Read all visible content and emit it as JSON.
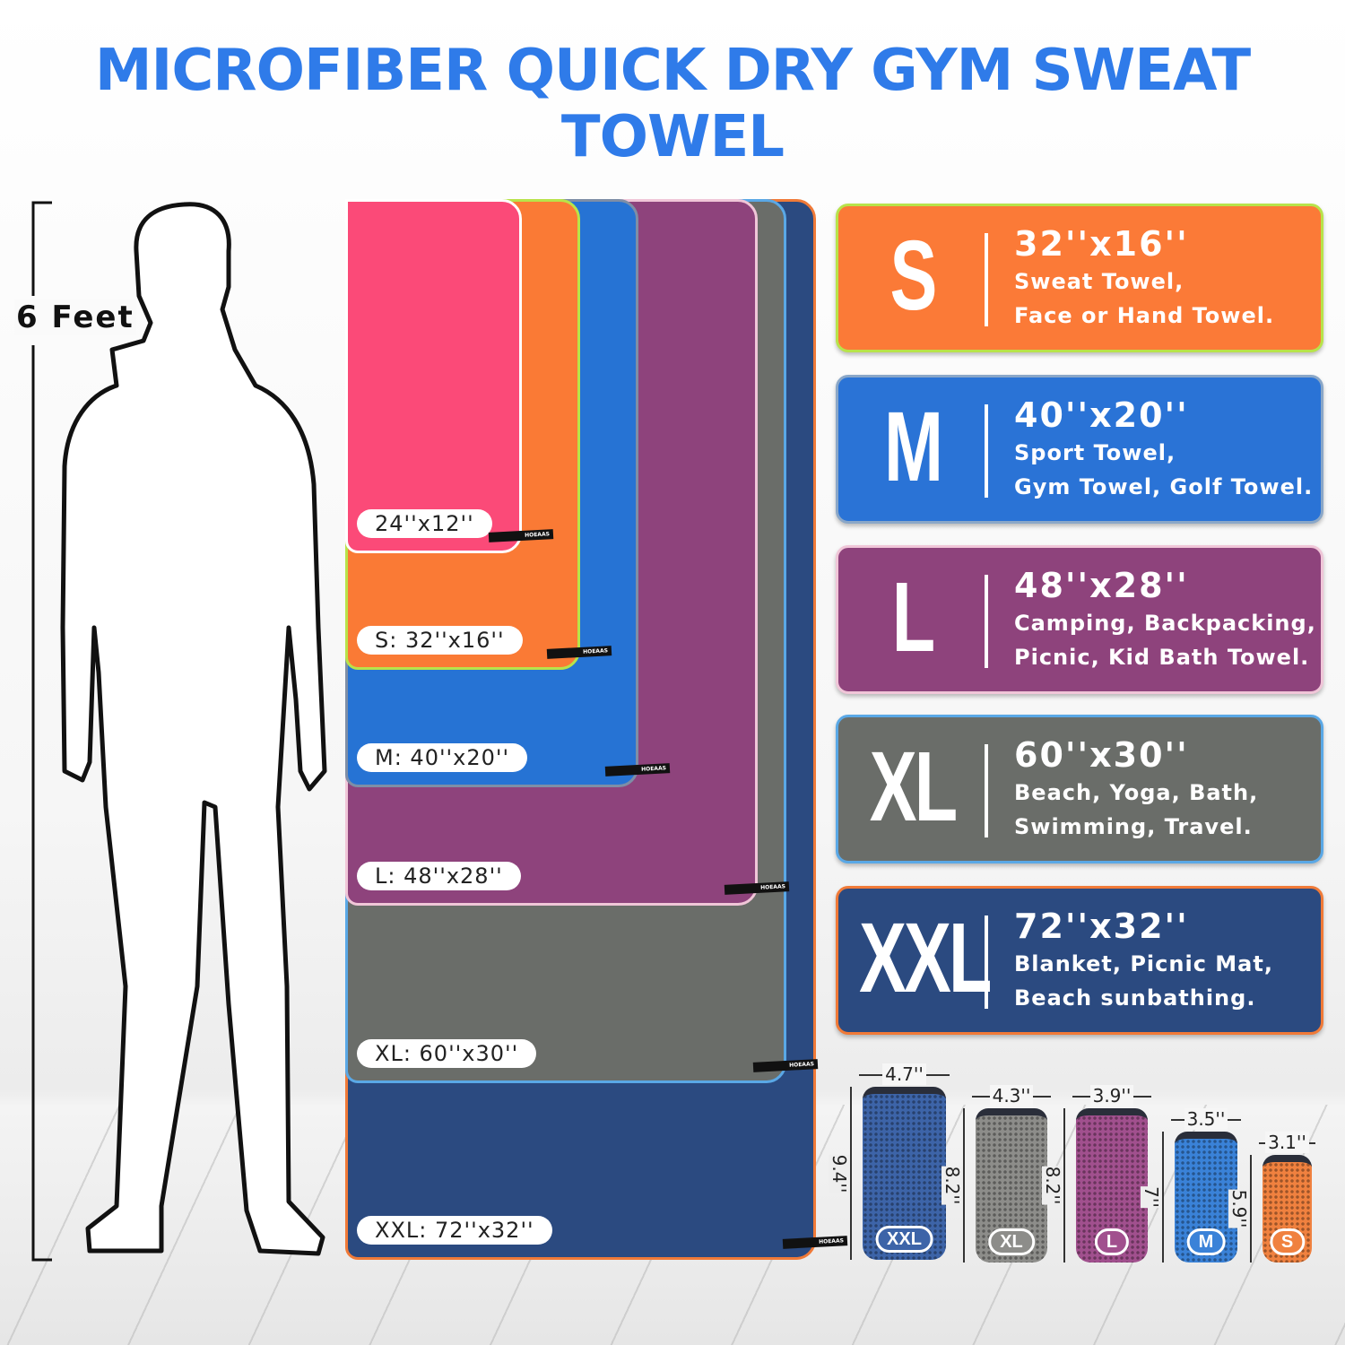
{
  "title": "MICROFIBER QUICK DRY GYM SWEAT TOWEL",
  "height_label": "6 Feet",
  "tag_brand": "HOEAAS",
  "towels": [
    {
      "label": "XXL: 72''x32''",
      "color": "#2b4a80",
      "border": "#f07a38"
    },
    {
      "label": "XL: 60''x30''",
      "color": "#6a6d69",
      "border": "#5aa8e6"
    },
    {
      "label": "L: 48''x28''",
      "color": "#8e437c",
      "border": "#f0c6d8"
    },
    {
      "label": "M: 40''x20''",
      "color": "#2673d4",
      "border": "#7e8ea6"
    },
    {
      "label": "S: 32''x16''",
      "color": "#fa7a35",
      "border": "#b8e34a"
    },
    {
      "label": "24''x12''",
      "color": "#fb4a78",
      "border": "#ffffff"
    }
  ],
  "cards": [
    {
      "size": "S",
      "dims": "32''x16''",
      "line1": "Sweat Towel,",
      "line2": "Face or Hand Towel.",
      "color": "#fb7a37",
      "border": "#b8e34a"
    },
    {
      "size": "M",
      "dims": "40''x20''",
      "line1": "Sport Towel,",
      "line2": "Gym Towel, Golf Towel.",
      "color": "#2a73d6",
      "border": "#8aa7c8"
    },
    {
      "size": "L",
      "dims": "48''x28''",
      "line1": "Camping, Backpacking,",
      "line2": "Picnic, Kid Bath Towel.",
      "color": "#8e437c",
      "border": "#f0c6d8"
    },
    {
      "size": "XL",
      "dims": "60''x30''",
      "line1": "Beach, Yoga, Bath,",
      "line2": "Swimming, Travel.",
      "color": "#6a6d69",
      "border": "#5aa8e6"
    },
    {
      "size": "XXL",
      "dims": "72''x32''",
      "line1": "Blanket, Picnic Mat,",
      "line2": "Beach sunbathing.",
      "color": "#2b4a80",
      "border": "#f07a38"
    }
  ],
  "bags": [
    {
      "size": "XXL",
      "width": "4.7''",
      "height": "9.4''",
      "color": "#3d64a8"
    },
    {
      "size": "XL",
      "width": "4.3''",
      "height": "8.2''",
      "color": "#8d8d8a"
    },
    {
      "size": "L",
      "width": "3.9''",
      "height": "8.2''",
      "color": "#a1508e"
    },
    {
      "size": "M",
      "width": "3.5''",
      "height": "7''",
      "color": "#3a82d8"
    },
    {
      "size": "S",
      "width": "3.1''",
      "height": "5.9''",
      "color": "#f0813f"
    }
  ]
}
